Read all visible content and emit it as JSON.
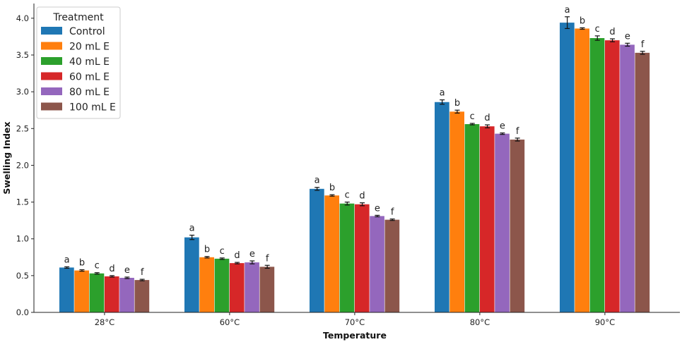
{
  "chart_data": {
    "type": "bar",
    "categories": [
      "28°C",
      "60°C",
      "70°C",
      "80°C",
      "90°C"
    ],
    "xlabel": "Temperature",
    "ylabel": "Swelling Index",
    "ylim": [
      0,
      4.2
    ],
    "yticks": [
      0.0,
      0.5,
      1.0,
      1.5,
      2.0,
      2.5,
      3.0,
      3.5,
      4.0
    ],
    "ytick_labels": [
      "0.0",
      "0.5",
      "1.0",
      "1.5",
      "2.0",
      "2.5",
      "3.0",
      "3.5",
      "4.0"
    ],
    "grid": false,
    "legend": {
      "title": "Treatment",
      "placement": "top-left"
    },
    "series": [
      {
        "name": "Control",
        "color": "#1f77b4",
        "values": [
          0.61,
          1.02,
          1.68,
          2.86,
          3.94
        ],
        "errors": [
          0.01,
          0.03,
          0.02,
          0.03,
          0.08
        ],
        "labels": [
          "a",
          "a",
          "a",
          "a",
          "a"
        ]
      },
      {
        "name": "20 mL E",
        "color": "#ff7f0e",
        "values": [
          0.57,
          0.75,
          1.59,
          2.73,
          3.86
        ],
        "errors": [
          0.01,
          0.01,
          0.01,
          0.02,
          0.01
        ],
        "labels": [
          "b",
          "b",
          "b",
          "b",
          "b"
        ]
      },
      {
        "name": "40 mL E",
        "color": "#2ca02c",
        "values": [
          0.53,
          0.73,
          1.48,
          2.56,
          3.73
        ],
        "errors": [
          0.01,
          0.01,
          0.02,
          0.01,
          0.03
        ],
        "labels": [
          "c",
          "c",
          "c",
          "c",
          "c"
        ]
      },
      {
        "name": "60 mL E",
        "color": "#d62728",
        "values": [
          0.49,
          0.67,
          1.47,
          2.53,
          3.7
        ],
        "errors": [
          0.01,
          0.01,
          0.02,
          0.02,
          0.02
        ],
        "labels": [
          "d",
          "d",
          "d",
          "d",
          "d"
        ]
      },
      {
        "name": "80 mL E",
        "color": "#9467bd",
        "values": [
          0.47,
          0.68,
          1.31,
          2.43,
          3.64
        ],
        "errors": [
          0.01,
          0.02,
          0.01,
          0.01,
          0.02
        ],
        "labels": [
          "e",
          "e",
          "e",
          "e",
          "e"
        ]
      },
      {
        "name": "100 mL E",
        "color": "#8c564b",
        "values": [
          0.44,
          0.62,
          1.26,
          2.35,
          3.53
        ],
        "errors": [
          0.01,
          0.02,
          0.01,
          0.02,
          0.02
        ],
        "labels": [
          "f",
          "f",
          "f",
          "f",
          "f"
        ]
      }
    ]
  }
}
